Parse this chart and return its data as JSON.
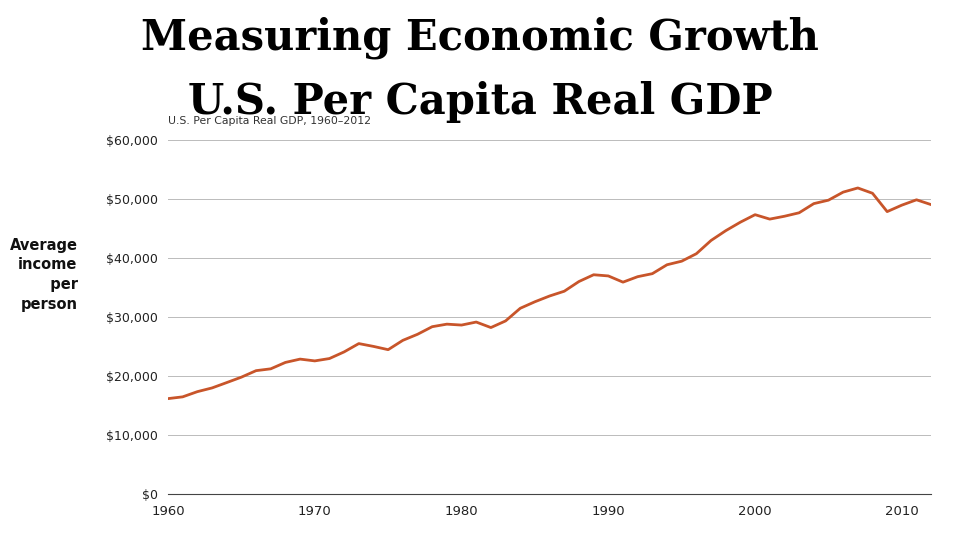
{
  "title_line1": "Measuring Economic Growth",
  "title_line2": "U.S. Per Capita Real GDP",
  "subtitle": "U.S. Per Capita Real GDP, 1960–2012",
  "line_color": "#C8552A",
  "background_color": "#ffffff",
  "header_bar_color": "#D4956A",
  "title_color": "#000000",
  "ylim": [
    0,
    60000
  ],
  "xlim": [
    1960,
    2012
  ],
  "yticks": [
    0,
    10000,
    20000,
    30000,
    40000,
    50000,
    60000
  ],
  "xticks": [
    1960,
    1970,
    1980,
    1990,
    2000,
    2010
  ],
  "years": [
    1960,
    1961,
    1962,
    1963,
    1964,
    1965,
    1966,
    1967,
    1968,
    1969,
    1970,
    1971,
    1972,
    1973,
    1974,
    1975,
    1976,
    1977,
    1978,
    1979,
    1980,
    1981,
    1982,
    1983,
    1984,
    1985,
    1986,
    1987,
    1988,
    1989,
    1990,
    1991,
    1992,
    1993,
    1994,
    1995,
    1996,
    1997,
    1998,
    1999,
    2000,
    2001,
    2002,
    2003,
    2004,
    2005,
    2006,
    2007,
    2008,
    2009,
    2010,
    2011,
    2012
  ],
  "gdp": [
    16197,
    16497,
    17378,
    18008,
    18917,
    19839,
    20940,
    21251,
    22337,
    22900,
    22596,
    22996,
    24122,
    25533,
    25054,
    24500,
    26082,
    27108,
    28397,
    28829,
    28674,
    29186,
    28252,
    29376,
    31520,
    32629,
    33606,
    34416,
    36062,
    37209,
    37009,
    35954,
    36882,
    37394,
    38905,
    39511,
    40778,
    43024,
    44683,
    46129,
    47399,
    46649,
    47132,
    47720,
    49274,
    49861,
    51224,
    51931,
    51032,
    47920,
    49018,
    49924,
    49100
  ]
}
